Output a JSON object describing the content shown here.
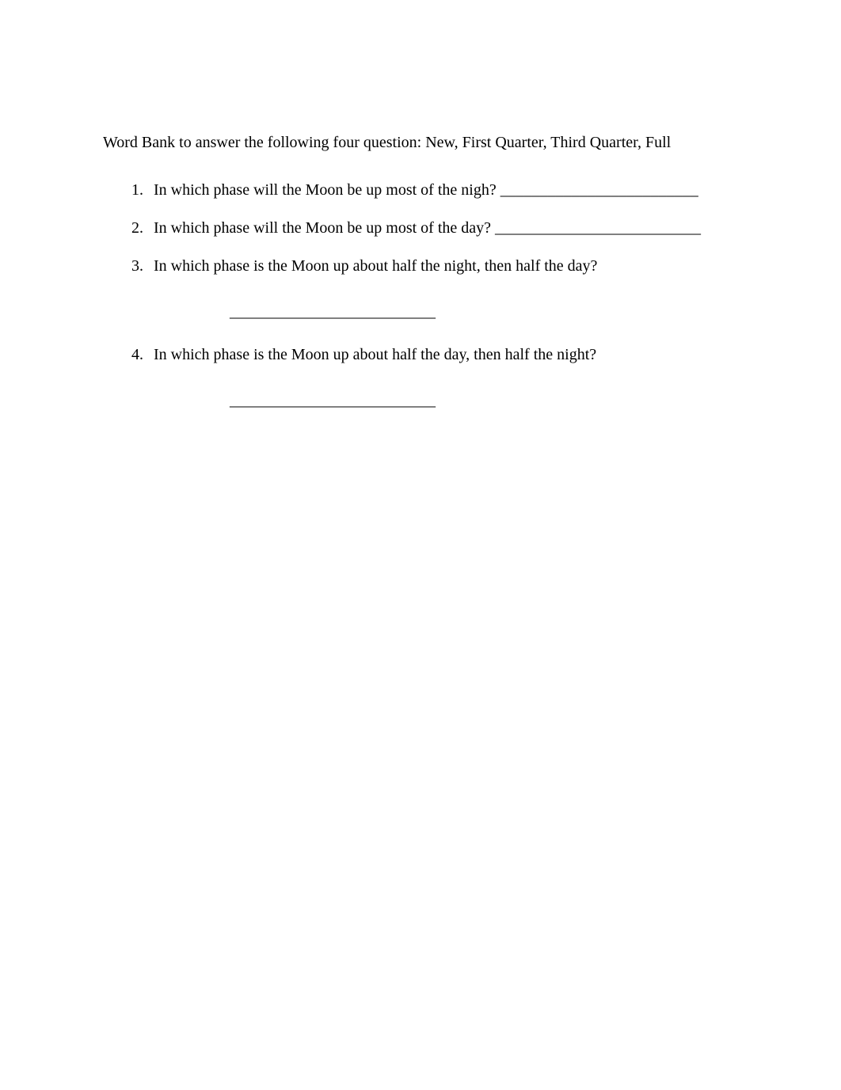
{
  "wordBank": {
    "label": "Word Bank to answer the following four question: ",
    "items": "New, First Quarter, Third Quarter, Full"
  },
  "questions": [
    {
      "number": "1.",
      "text": "In which phase will the Moon be up most of the nigh? _________________________",
      "hasBlankBelow": false
    },
    {
      "number": "2.",
      "text": "In which phase will the Moon be up most of the day? __________________________",
      "hasBlankBelow": false
    },
    {
      "number": "3.",
      "text": "In which phase is the Moon up about half the night, then half the day?",
      "hasBlankBelow": true,
      "blank": "__________________________"
    },
    {
      "number": "4.",
      "text": "In which phase is the Moon up about half the day, then half the night?",
      "hasBlankBelow": true,
      "blank": "__________________________"
    }
  ],
  "colors": {
    "background": "#ffffff",
    "text": "#000000"
  },
  "typography": {
    "fontFamily": "Times New Roman",
    "fontSize": 20
  }
}
